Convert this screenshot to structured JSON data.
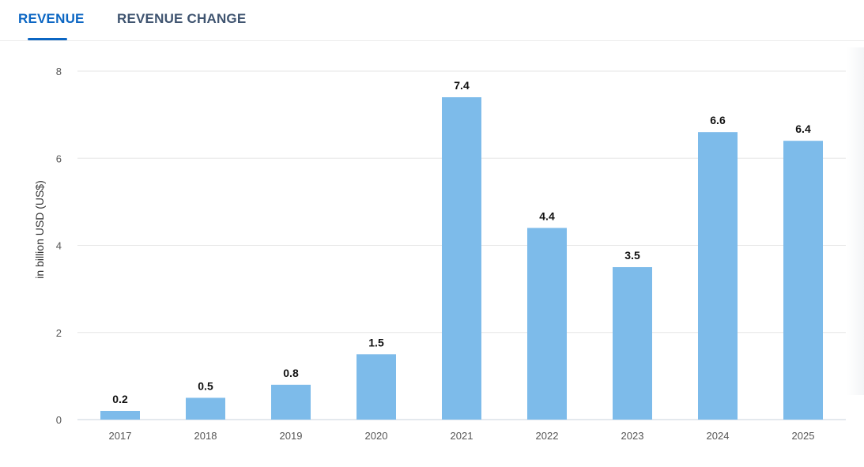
{
  "tabs": [
    {
      "label": "REVENUE",
      "active": true
    },
    {
      "label": "REVENUE CHANGE",
      "active": false
    }
  ],
  "colors": {
    "accent": "#0b66c3",
    "bar": "#7dbbea",
    "grid": "#e6e6e6",
    "axis": "#c9d3dc",
    "tick_text": "#555555",
    "label_text": "#111111"
  },
  "chart_data": {
    "type": "bar",
    "categories": [
      "2017",
      "2018",
      "2019",
      "2020",
      "2021",
      "2022",
      "2023",
      "2024",
      "2025"
    ],
    "values": [
      0.2,
      0.5,
      0.8,
      1.5,
      7.4,
      4.4,
      3.5,
      6.6,
      6.4
    ],
    "data_labels": [
      "0.2",
      "0.5",
      "0.8",
      "1.5",
      "7.4",
      "4.4",
      "3.5",
      "6.6",
      "6.4"
    ],
    "ylabel": "in billion USD (US$)",
    "ylim": [
      0,
      8
    ],
    "yticks": [
      0,
      2,
      4,
      6,
      8
    ],
    "grid": true,
    "legend": "none"
  }
}
